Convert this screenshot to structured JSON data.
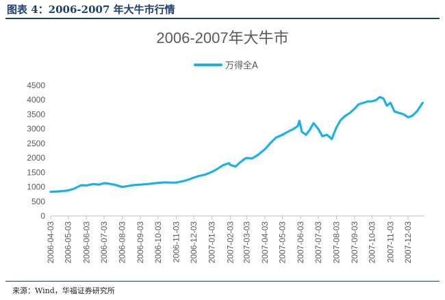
{
  "figure": {
    "caption": "图表 4：2006-2007 年大牛市行情",
    "source": "来源：Wind，华福证券研究所"
  },
  "chart_data": {
    "type": "line",
    "title": "2006-2007年大牛市",
    "legend_position": "top-center",
    "grid": false,
    "ylim": [
      0,
      4500
    ],
    "yticks": [
      0,
      500,
      1000,
      1500,
      2000,
      2500,
      3000,
      3500,
      4000,
      4500
    ],
    "xticks": [
      "2006-04-03",
      "2006-05-03",
      "2006-06-03",
      "2006-07-03",
      "2006-08-03",
      "2006-09-03",
      "2006-10-03",
      "2006-11-03",
      "2006-12-03",
      "2007-01-03",
      "2007-02-03",
      "2007-03-03",
      "2007-04-03",
      "2007-05-03",
      "2007-06-03",
      "2007-07-03",
      "2007-08-03",
      "2007-09-03",
      "2007-10-03",
      "2007-11-03",
      "2007-12-03"
    ],
    "series": [
      {
        "name": "万得全A",
        "color": "#1ab0e8",
        "x": [
          "2006-04-03",
          "2006-04-20",
          "2006-05-03",
          "2006-05-12",
          "2006-05-25",
          "2006-06-03",
          "2006-06-15",
          "2006-06-25",
          "2006-07-03",
          "2006-07-12",
          "2006-07-20",
          "2006-08-03",
          "2006-08-15",
          "2006-08-25",
          "2006-09-03",
          "2006-09-15",
          "2006-09-25",
          "2006-10-03",
          "2006-10-15",
          "2006-10-25",
          "2006-11-03",
          "2006-11-15",
          "2006-11-25",
          "2006-12-03",
          "2006-12-12",
          "2006-12-22",
          "2007-01-03",
          "2007-01-12",
          "2007-01-22",
          "2007-02-01",
          "2007-02-03",
          "2007-02-12",
          "2007-02-20",
          "2007-02-27",
          "2007-03-03",
          "2007-03-12",
          "2007-03-22",
          "2007-04-03",
          "2007-04-12",
          "2007-04-22",
          "2007-05-03",
          "2007-05-12",
          "2007-05-22",
          "2007-05-29",
          "2007-06-01",
          "2007-06-03",
          "2007-06-05",
          "2007-06-12",
          "2007-06-18",
          "2007-06-25",
          "2007-07-03",
          "2007-07-10",
          "2007-07-18",
          "2007-07-26",
          "2007-08-03",
          "2007-08-10",
          "2007-08-18",
          "2007-08-26",
          "2007-09-03",
          "2007-09-10",
          "2007-09-18",
          "2007-09-26",
          "2007-10-03",
          "2007-10-10",
          "2007-10-16",
          "2007-10-22",
          "2007-10-28",
          "2007-11-03",
          "2007-11-10",
          "2007-11-18",
          "2007-11-26",
          "2007-12-03",
          "2007-12-10",
          "2007-12-18",
          "2007-12-28"
        ],
        "values": [
          830,
          850,
          880,
          930,
          1060,
          1050,
          1100,
          1080,
          1130,
          1110,
          1080,
          1000,
          1040,
          1070,
          1080,
          1100,
          1120,
          1140,
          1160,
          1150,
          1150,
          1200,
          1260,
          1320,
          1380,
          1420,
          1520,
          1620,
          1750,
          1820,
          1760,
          1700,
          1850,
          1960,
          2000,
          1980,
          2100,
          2300,
          2500,
          2700,
          2800,
          2900,
          3000,
          3100,
          3280,
          3100,
          2900,
          2800,
          2950,
          3200,
          3000,
          2750,
          2800,
          2650,
          3050,
          3300,
          3450,
          3550,
          3700,
          3850,
          3900,
          3950,
          3950,
          4000,
          4100,
          4050,
          3800,
          3900,
          3600,
          3550,
          3500,
          3400,
          3450,
          3600,
          3900
        ]
      }
    ]
  }
}
